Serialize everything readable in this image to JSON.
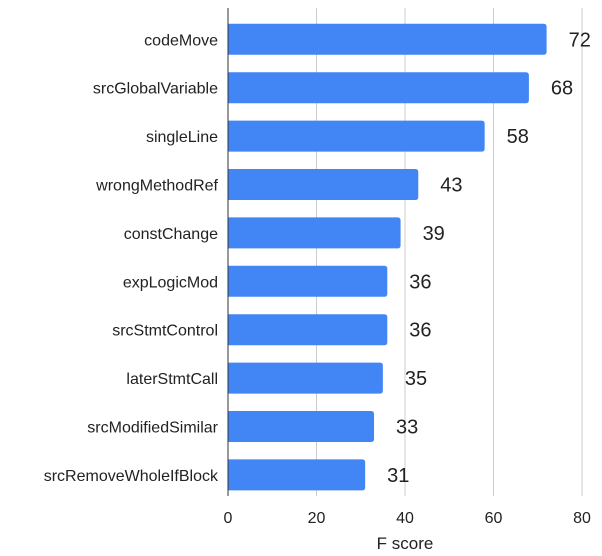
{
  "chart_data": {
    "type": "bar",
    "orientation": "horizontal",
    "categories": [
      "codeMove",
      "srcGlobalVariable",
      "singleLine",
      "wrongMethodRef",
      "constChange",
      "expLogicMod",
      "srcStmtControl",
      "laterStmtCall",
      "srcModifiedSimilar",
      "srcRemoveWholeIfBlock"
    ],
    "values": [
      72,
      68,
      58,
      43,
      39,
      36,
      36,
      35,
      33,
      31
    ],
    "value_labels": [
      "72",
      "68",
      "58",
      "43",
      "39",
      "36",
      "36",
      "35",
      "33",
      "31"
    ],
    "xlabel": "F score",
    "ylabel": "",
    "xlim": [
      0,
      80
    ],
    "xticks": [
      0,
      20,
      40,
      60,
      80
    ],
    "xtick_labels": [
      "0",
      "20",
      "40",
      "60",
      "80"
    ],
    "grid": "vertical",
    "bar_color": "#4285f4"
  }
}
